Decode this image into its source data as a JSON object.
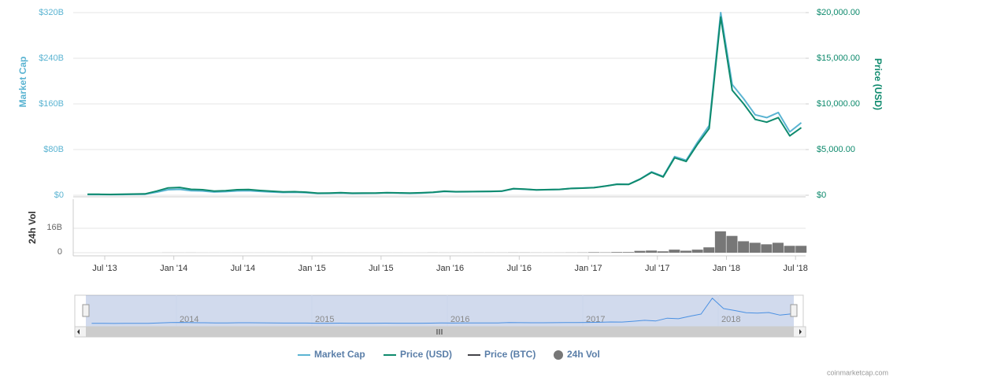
{
  "chart_data": {
    "type": "line",
    "x": [
      "2013-05",
      "2013-06",
      "2013-07",
      "2013-08",
      "2013-09",
      "2013-10",
      "2013-11",
      "2013-12",
      "2014-01",
      "2014-02",
      "2014-03",
      "2014-04",
      "2014-05",
      "2014-06",
      "2014-07",
      "2014-08",
      "2014-09",
      "2014-10",
      "2014-11",
      "2014-12",
      "2015-01",
      "2015-02",
      "2015-03",
      "2015-04",
      "2015-05",
      "2015-06",
      "2015-07",
      "2015-08",
      "2015-09",
      "2015-10",
      "2015-11",
      "2015-12",
      "2016-01",
      "2016-02",
      "2016-03",
      "2016-04",
      "2016-05",
      "2016-06",
      "2016-07",
      "2016-08",
      "2016-09",
      "2016-10",
      "2016-11",
      "2016-12",
      "2017-01",
      "2017-02",
      "2017-03",
      "2017-04",
      "2017-05",
      "2017-06",
      "2017-07",
      "2017-08",
      "2017-09",
      "2017-10",
      "2017-11",
      "2017-12",
      "2018-01",
      "2018-02",
      "2018-03",
      "2018-04",
      "2018-05",
      "2018-06",
      "2018-07"
    ],
    "xticks": [
      {
        "value": "2013-07",
        "label": "Jul '13"
      },
      {
        "value": "2014-01",
        "label": "Jan '14"
      },
      {
        "value": "2014-07",
        "label": "Jul '14"
      },
      {
        "value": "2015-01",
        "label": "Jan '15"
      },
      {
        "value": "2015-07",
        "label": "Jul '15"
      },
      {
        "value": "2016-01",
        "label": "Jan '16"
      },
      {
        "value": "2016-07",
        "label": "Jul '16"
      },
      {
        "value": "2017-01",
        "label": "Jan '17"
      },
      {
        "value": "2017-07",
        "label": "Jul '17"
      },
      {
        "value": "2018-01",
        "label": "Jan '18"
      },
      {
        "value": "2018-07",
        "label": "Jul '18"
      }
    ],
    "series": [
      {
        "name": "Market Cap",
        "color": "#5bb4d2",
        "axis": "y",
        "values": [
          1.3,
          1.2,
          1.0,
          1.3,
          1.5,
          1.8,
          5.4,
          9.6,
          10.4,
          7.9,
          7.4,
          5.6,
          6.3,
          7.6,
          7.9,
          6.7,
          5.7,
          4.8,
          5.1,
          4.5,
          3.0,
          3.3,
          3.9,
          3.1,
          3.3,
          3.4,
          4.1,
          3.7,
          3.3,
          3.9,
          4.8,
          6.5,
          5.9,
          6.1,
          6.3,
          6.5,
          7.0,
          11.2,
          10.4,
          9.2,
          9.7,
          10.2,
          11.8,
          12.5,
          13.4,
          16.2,
          19.5,
          19.2,
          28.6,
          41.0,
          32.9,
          67.7,
          61.3,
          93.2,
          122,
          320,
          194,
          169,
          141,
          136,
          145,
          111,
          127
        ]
      },
      {
        "name": "Price (USD)",
        "color": "#0e8a6d",
        "axis": "y2",
        "values": [
          115,
          105,
          90,
          110,
          130,
          150,
          450,
          800,
          850,
          650,
          600,
          450,
          500,
          600,
          620,
          520,
          440,
          370,
          390,
          340,
          220,
          240,
          280,
          225,
          235,
          240,
          285,
          260,
          230,
          265,
          330,
          440,
          390,
          400,
          415,
          425,
          455,
          720,
          660,
          580,
          610,
          640,
          740,
          780,
          830,
          1000,
          1200,
          1180,
          1750,
          2500,
          2000,
          4100,
          3700,
          5600,
          7300,
          19500,
          11500,
          10000,
          8300,
          8000,
          8500,
          6500,
          7400
        ]
      },
      {
        "name": "Price (BTC)",
        "color": "#434348"
      },
      {
        "name": "24h Vol",
        "color": "#777777",
        "axis": "vol",
        "values": [
          0,
          0,
          0,
          0,
          0,
          0,
          0,
          0.05,
          0.04,
          0.05,
          0.03,
          0.02,
          0.02,
          0.02,
          0.02,
          0.02,
          0.02,
          0.02,
          0.02,
          0.02,
          0.03,
          0.02,
          0.02,
          0.02,
          0.02,
          0.02,
          0.03,
          0.03,
          0.02,
          0.03,
          0.06,
          0.05,
          0.06,
          0.05,
          0.06,
          0.06,
          0.06,
          0.1,
          0.1,
          0.07,
          0.06,
          0.07,
          0.1,
          0.13,
          0.3,
          0.2,
          0.4,
          0.4,
          1.2,
          1.4,
          0.9,
          2.0,
          1.3,
          2.0,
          3.5,
          14,
          11,
          7.5,
          6.5,
          5.5,
          6.5,
          4.5,
          4.5
        ]
      }
    ],
    "ylabel": "Market Cap",
    "ylim": [
      0,
      320
    ],
    "yticks": [
      {
        "value": 0,
        "label": "$0"
      },
      {
        "value": 80,
        "label": "$80B"
      },
      {
        "value": 160,
        "label": "$160B"
      },
      {
        "value": 240,
        "label": "$240B"
      },
      {
        "value": 320,
        "label": "$320B"
      }
    ],
    "y2label": "Price (USD)",
    "y2lim": [
      0,
      20000
    ],
    "y2ticks": [
      {
        "value": 0,
        "label": "$0"
      },
      {
        "value": 5000,
        "label": "$5,000.00"
      },
      {
        "value": 10000,
        "label": "$10,000.00"
      },
      {
        "value": 15000,
        "label": "$15,000.00"
      },
      {
        "value": 20000,
        "label": "$20,000.00"
      }
    ],
    "vol_label": "24h Vol",
    "vol_lim": [
      0,
      35
    ],
    "vol_ticks": [
      0,
      {
        "value": 16,
        "label": "16B"
      }
    ],
    "navigator_labels": [
      "2014",
      "2015",
      "2016",
      "2017",
      "2018"
    ],
    "grid": true,
    "credits": "coinmarketcap.com"
  }
}
